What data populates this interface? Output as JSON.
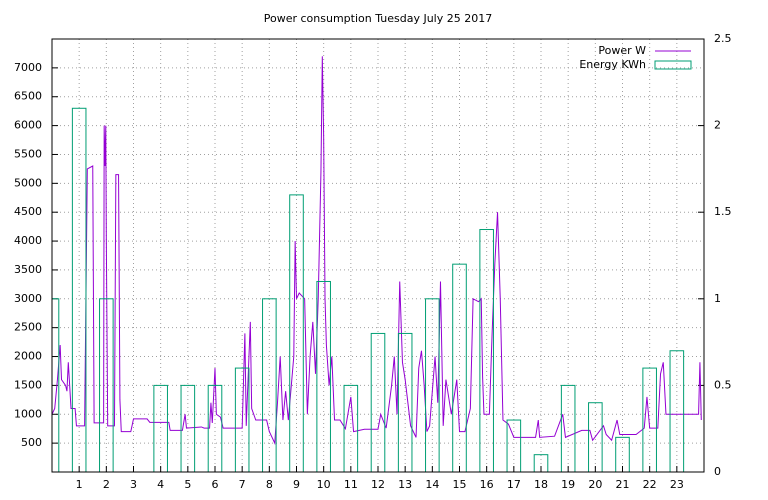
{
  "chart_data": {
    "type": "line",
    "title": "Power consumption Tuesday July 25 2017",
    "xlim": [
      0,
      24
    ],
    "xticks": [
      1,
      2,
      3,
      4,
      5,
      6,
      7,
      8,
      9,
      10,
      11,
      12,
      13,
      14,
      15,
      16,
      17,
      18,
      19,
      20,
      21,
      22,
      23
    ],
    "ylim": [
      0,
      7500
    ],
    "yticks": [
      500,
      1000,
      1500,
      2000,
      2500,
      3000,
      3500,
      4000,
      4500,
      5000,
      5500,
      6000,
      6500,
      7000
    ],
    "y2lim": [
      0,
      2.5
    ],
    "y2ticks": [
      0,
      0.5,
      1,
      1.5,
      2,
      2.5
    ],
    "grid": true,
    "legend": "top-right",
    "series": [
      {
        "name": "Power W",
        "color": "#9400d3",
        "x": [
          0.0,
          0.1,
          0.2,
          0.3,
          0.35,
          0.5,
          0.55,
          0.6,
          0.7,
          0.85,
          0.9,
          1.2,
          1.3,
          1.5,
          1.55,
          1.9,
          1.92,
          1.95,
          1.98,
          2.0,
          2.05,
          2.3,
          2.35,
          2.45,
          2.5,
          2.55,
          2.9,
          3.0,
          3.5,
          3.6,
          4.3,
          4.35,
          4.8,
          4.9,
          4.95,
          5.5,
          5.6,
          5.8,
          5.85,
          5.9,
          6.0,
          6.05,
          6.2,
          6.3,
          7.0,
          7.1,
          7.15,
          7.3,
          7.35,
          7.5,
          7.9,
          8.0,
          8.2,
          8.3,
          8.4,
          8.5,
          8.6,
          8.7,
          8.9,
          8.95,
          9.0,
          9.1,
          9.3,
          9.4,
          9.5,
          9.6,
          9.7,
          9.8,
          9.9,
          9.95,
          10.0,
          10.05,
          10.1,
          10.2,
          10.3,
          10.4,
          10.6,
          10.8,
          11.0,
          11.1,
          11.5,
          12.0,
          12.1,
          12.3,
          12.5,
          12.6,
          12.7,
          12.8,
          12.9,
          13.0,
          13.2,
          13.4,
          13.5,
          13.6,
          13.7,
          13.8,
          13.9,
          14.1,
          14.2,
          14.3,
          14.4,
          14.5,
          14.7,
          14.9,
          15.0,
          15.2,
          15.4,
          15.5,
          15.7,
          15.8,
          15.85,
          15.9,
          16.1,
          16.2,
          16.3,
          16.4,
          16.5,
          16.6,
          16.8,
          17.0,
          17.8,
          17.9,
          17.95,
          18.5,
          18.8,
          18.9,
          19.5,
          19.8,
          19.9,
          20.3,
          20.4,
          20.6,
          20.8,
          20.9,
          21.5,
          21.8,
          21.9,
          22.0,
          22.3,
          22.4,
          22.5,
          22.6,
          23.5,
          23.8,
          23.85,
          23.9
        ],
        "values": [
          1000,
          1100,
          1600,
          2200,
          1600,
          1500,
          1400,
          1900,
          1100,
          1100,
          800,
          800,
          5250,
          5300,
          850,
          850,
          6000,
          5300,
          6000,
          4000,
          800,
          800,
          5150,
          5150,
          1250,
          700,
          700,
          920,
          920,
          860,
          860,
          720,
          720,
          1000,
          760,
          780,
          760,
          760,
          1200,
          850,
          1800,
          1000,
          950,
          760,
          760,
          2400,
          800,
          2600,
          1100,
          900,
          900,
          700,
          500,
          1200,
          2000,
          900,
          1400,
          900,
          2000,
          4000,
          3000,
          3100,
          3000,
          1000,
          2000,
          2600,
          1700,
          3000,
          5200,
          7200,
          5800,
          3000,
          2200,
          1500,
          2000,
          900,
          900,
          750,
          1300,
          700,
          740,
          740,
          1000,
          760,
          1500,
          2000,
          1000,
          3300,
          1900,
          1600,
          800,
          600,
          1800,
          2100,
          1500,
          700,
          800,
          2000,
          1200,
          3300,
          800,
          1600,
          1000,
          1600,
          700,
          700,
          1100,
          3000,
          2950,
          3000,
          1650,
          1000,
          1000,
          2400,
          3600,
          4500,
          3000,
          900,
          830,
          600,
          600,
          900,
          600,
          620,
          1000,
          600,
          720,
          720,
          550,
          800,
          650,
          550,
          900,
          650,
          650,
          760,
          1300,
          760,
          760,
          1700,
          1900,
          1000,
          1000,
          1000,
          1900,
          900
        ]
      },
      {
        "name": "Energy KWh",
        "color": "#009e73",
        "axis": "y2",
        "type": "bar",
        "x": [
          0,
          1,
          2,
          3,
          4,
          5,
          6,
          7,
          8,
          9,
          10,
          11,
          12,
          13,
          14,
          15,
          16,
          17,
          18,
          19,
          20,
          21,
          22,
          23
        ],
        "values": [
          1.0,
          2.1,
          1.0,
          0,
          0.5,
          0.5,
          0.5,
          0.6,
          1.0,
          1.6,
          1.1,
          0.5,
          0.8,
          0.8,
          1.0,
          1.2,
          1.4,
          0.3,
          0.1,
          0.5,
          0.4,
          0.2,
          0.6,
          0.7
        ]
      }
    ]
  }
}
